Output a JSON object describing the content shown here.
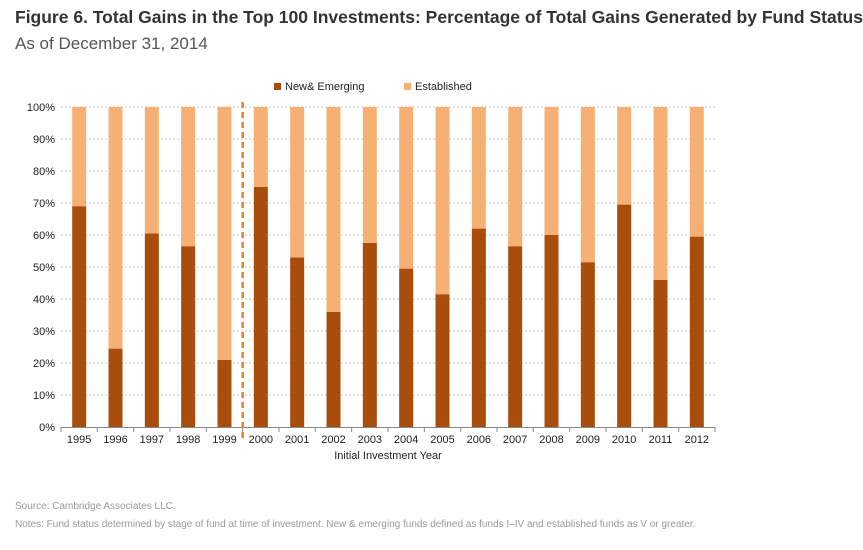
{
  "header": {
    "title": "Figure 6. Total Gains in the Top 100 Investments: Percentage of Total Gains Generated by Fund Status",
    "subtitle": "As of December 31, 2014"
  },
  "footer": {
    "source": "Source: Cambridge Associates LLC.",
    "notes": "Notes: Fund status determined by stage of fund at time of investment. New & emerging funds defined as funds I–IV and established funds as V or greater."
  },
  "colors": {
    "new_emerging": "#a84d0c",
    "established": "#f7b074",
    "divider": "#e8802a",
    "grid": "#c8c8c8"
  },
  "chart_data": {
    "type": "bar",
    "stacked": true,
    "categories": [
      "1995",
      "1996",
      "1997",
      "1998",
      "1999",
      "2000",
      "2001",
      "2002",
      "2003",
      "2004",
      "2005",
      "2006",
      "2007",
      "2008",
      "2009",
      "2010",
      "2011",
      "2012"
    ],
    "series": [
      {
        "name": "New& Emerging",
        "values": [
          69,
          24.5,
          60.5,
          56.5,
          21,
          75,
          53,
          36,
          57.5,
          49.5,
          41.5,
          62,
          56.5,
          60,
          51.5,
          69.5,
          46,
          59.5
        ]
      },
      {
        "name": "Established",
        "values": [
          31,
          75.5,
          39.5,
          43.5,
          79,
          25,
          47,
          64,
          42.5,
          50.5,
          58.5,
          38,
          43.5,
          40,
          48.5,
          30.5,
          54,
          40.5
        ]
      }
    ],
    "y_ticks": [
      "0%",
      "10%",
      "20%",
      "30%",
      "40%",
      "50%",
      "60%",
      "70%",
      "80%",
      "90%",
      "100%"
    ],
    "ylim": [
      0,
      100
    ],
    "xlabel": "Initial Investment Year",
    "ylabel": "",
    "grid": true,
    "legend_position": "top-center",
    "divider_after_category": "1999"
  }
}
